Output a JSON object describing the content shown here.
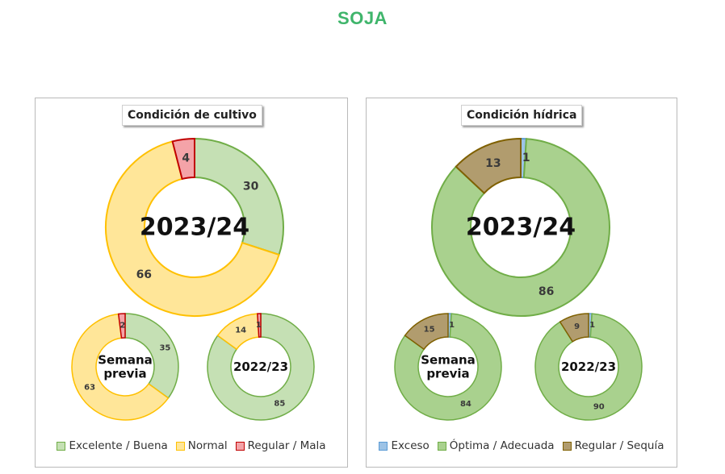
{
  "page": {
    "title": "SOJA"
  },
  "chart_data": [
    {
      "type": "pie",
      "subtype": "donut",
      "title": "Condición  de cultivo",
      "legend": {
        "placement": "bottom",
        "entries": [
          {
            "label": "Excelente / Buena",
            "fill": "#c5e0b4",
            "stroke": "#70ad47"
          },
          {
            "label": "Normal",
            "fill": "#ffe699",
            "stroke": "#ffc000"
          },
          {
            "label": "Regular / Mala",
            "fill": "#f4a3a8",
            "stroke": "#c00000"
          }
        ]
      },
      "categories": [
        "Excelente / Buena",
        "Normal",
        "Regular / Mala"
      ],
      "series": [
        {
          "name": "2023/24",
          "values": [
            30,
            66,
            4
          ],
          "labels": [
            "30",
            "66",
            "4"
          ]
        },
        {
          "name": "Semana previa",
          "values": [
            35,
            63,
            2
          ],
          "labels": [
            "35",
            "63",
            "2"
          ]
        },
        {
          "name": "2022/23",
          "values": [
            85,
            14,
            1
          ],
          "labels": [
            "85",
            "14",
            "1"
          ]
        }
      ]
    },
    {
      "type": "pie",
      "subtype": "donut",
      "title": "Condición  hídrica",
      "legend": {
        "placement": "bottom",
        "entries": [
          {
            "label": "Exceso",
            "fill": "#9dc3e6",
            "stroke": "#5b9bd5"
          },
          {
            "label": "Óptima / Adecuada",
            "fill": "#a9d18e",
            "stroke": "#70ad47"
          },
          {
            "label": "Regular / Sequía",
            "fill": "#b19c6e",
            "stroke": "#7f6000"
          }
        ]
      },
      "categories": [
        "Exceso",
        "Óptima / Adecuada",
        "Regular / Sequía"
      ],
      "series": [
        {
          "name": "2023/24",
          "values": [
            1,
            86,
            13
          ],
          "labels": [
            "1",
            "86",
            "13"
          ]
        },
        {
          "name": "Semana previa",
          "values": [
            1,
            84,
            15
          ],
          "labels": [
            "1",
            "84",
            "15"
          ]
        },
        {
          "name": "2022/23",
          "values": [
            1,
            90,
            9
          ],
          "labels": [
            "1",
            "90",
            "9"
          ]
        }
      ]
    }
  ],
  "center_labels": {
    "big": "2023/24",
    "prev_line1": "Semana",
    "prev_line2": "previa",
    "last": "2022/23"
  }
}
